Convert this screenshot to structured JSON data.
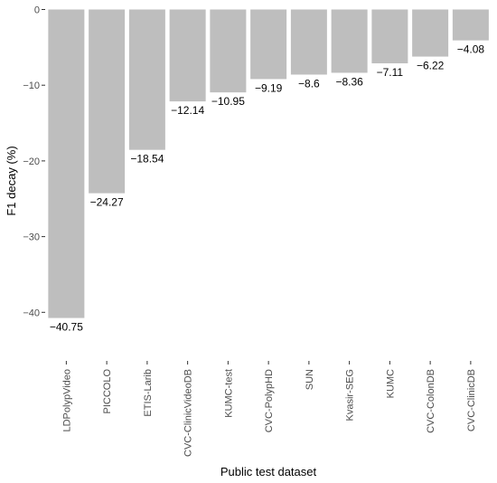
{
  "chart_data": {
    "type": "bar",
    "categories": [
      "LDPolypVideo",
      "PICCOLO",
      "ETIS-Larib",
      "CVC-ClinicVideoDB",
      "KUMC-test",
      "CVC-PolypHD",
      "SUN",
      "Kvasir-SEG",
      "KUMC",
      "CVC-ColonDB",
      "CVC-ClinicDB"
    ],
    "values": [
      -40.75,
      -24.27,
      -18.54,
      -12.14,
      -10.95,
      -9.19,
      -8.6,
      -8.36,
      -7.11,
      -6.22,
      -4.08
    ],
    "value_labels": [
      "−40.75",
      "−24.27",
      "−18.54",
      "−12.14",
      "−10.95",
      "−9.19",
      "−8.6",
      "−8.36",
      "−7.11",
      "−6.22",
      "−4.08"
    ],
    "xlabel": "Public test dataset",
    "ylabel": "F1 decay (%)",
    "yticks": [
      0,
      -10,
      -20,
      -30,
      -40
    ],
    "ytick_labels": [
      "0",
      "−10",
      "−20",
      "−30",
      "−40"
    ],
    "ylim": [
      -45,
      0
    ],
    "grid": false,
    "legend": "none",
    "bar_color": "#bebebe",
    "text_color": "#000000",
    "tick_color": "#4d4d4d"
  }
}
